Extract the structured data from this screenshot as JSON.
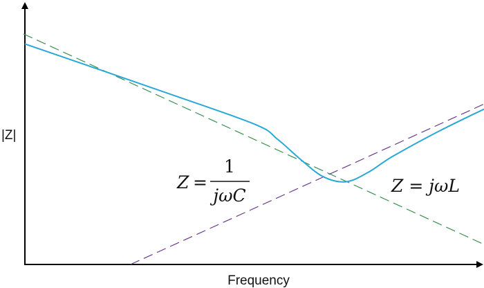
{
  "chart_data": {
    "type": "line",
    "title": "",
    "xlabel": "Frequency",
    "ylabel": "|Z|",
    "log_scale": true,
    "grid": false,
    "x_ticks": false,
    "y_ticks": false,
    "colors": {
      "impedance": "#29a8d8",
      "capacitive": "#3a8f50",
      "inductive": "#6b3a8c",
      "axis": "#000000"
    },
    "series": [
      {
        "name": "",
        "style": "solid",
        "color": "#29a8d8",
        "points": [
          [
            0.0,
            0.88
          ],
          [
            0.3,
            0.69
          ],
          [
            0.5,
            0.56
          ],
          [
            0.55,
            0.5
          ],
          [
            0.6,
            0.42
          ],
          [
            0.65,
            0.35
          ],
          [
            0.7,
            0.33
          ],
          [
            0.75,
            0.37
          ],
          [
            0.8,
            0.43
          ],
          [
            0.9,
            0.53
          ],
          [
            1.0,
            0.62
          ]
        ]
      },
      {
        "name": "",
        "style": "dashed",
        "color": "#3a8f50",
        "points": [
          [
            -0.003,
            0.92
          ],
          [
            1.0,
            0.08
          ]
        ]
      },
      {
        "name": "",
        "style": "dashed",
        "color": "#6b3a8c",
        "points": [
          [
            0.23,
            0.0
          ],
          [
            1.0,
            0.64
          ]
        ]
      }
    ],
    "annotations": {
      "capacitive": {
        "lhs": "Z",
        "eq": "=",
        "num": "1",
        "den": "jωC"
      },
      "inductive": {
        "text": "Z = jωL"
      }
    }
  }
}
